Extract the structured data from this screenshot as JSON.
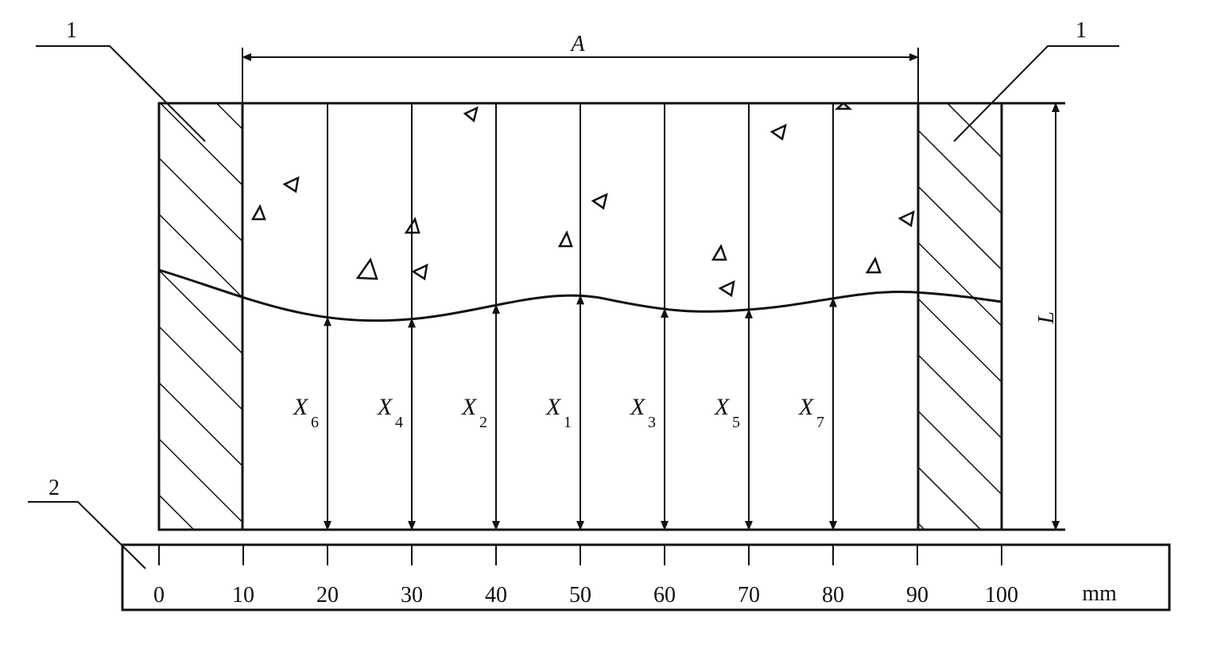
{
  "callouts": {
    "left_top": "1",
    "right_top": "1",
    "bottom": "2"
  },
  "dimensions": {
    "width_label": "A",
    "height_label": "L"
  },
  "measurements": [
    {
      "label": "X",
      "sub": "6",
      "position": 20
    },
    {
      "label": "X",
      "sub": "4",
      "position": 30
    },
    {
      "label": "X",
      "sub": "2",
      "position": 40
    },
    {
      "label": "X",
      "sub": "1",
      "position": 50
    },
    {
      "label": "X",
      "sub": "3",
      "position": 60
    },
    {
      "label": "X",
      "sub": "5",
      "position": 70
    },
    {
      "label": "X",
      "sub": "7",
      "position": 80
    }
  ],
  "scale": {
    "ticks": [
      "0",
      "10",
      "20",
      "30",
      "40",
      "50",
      "60",
      "70",
      "80",
      "90",
      "100"
    ],
    "unit": "mm"
  }
}
